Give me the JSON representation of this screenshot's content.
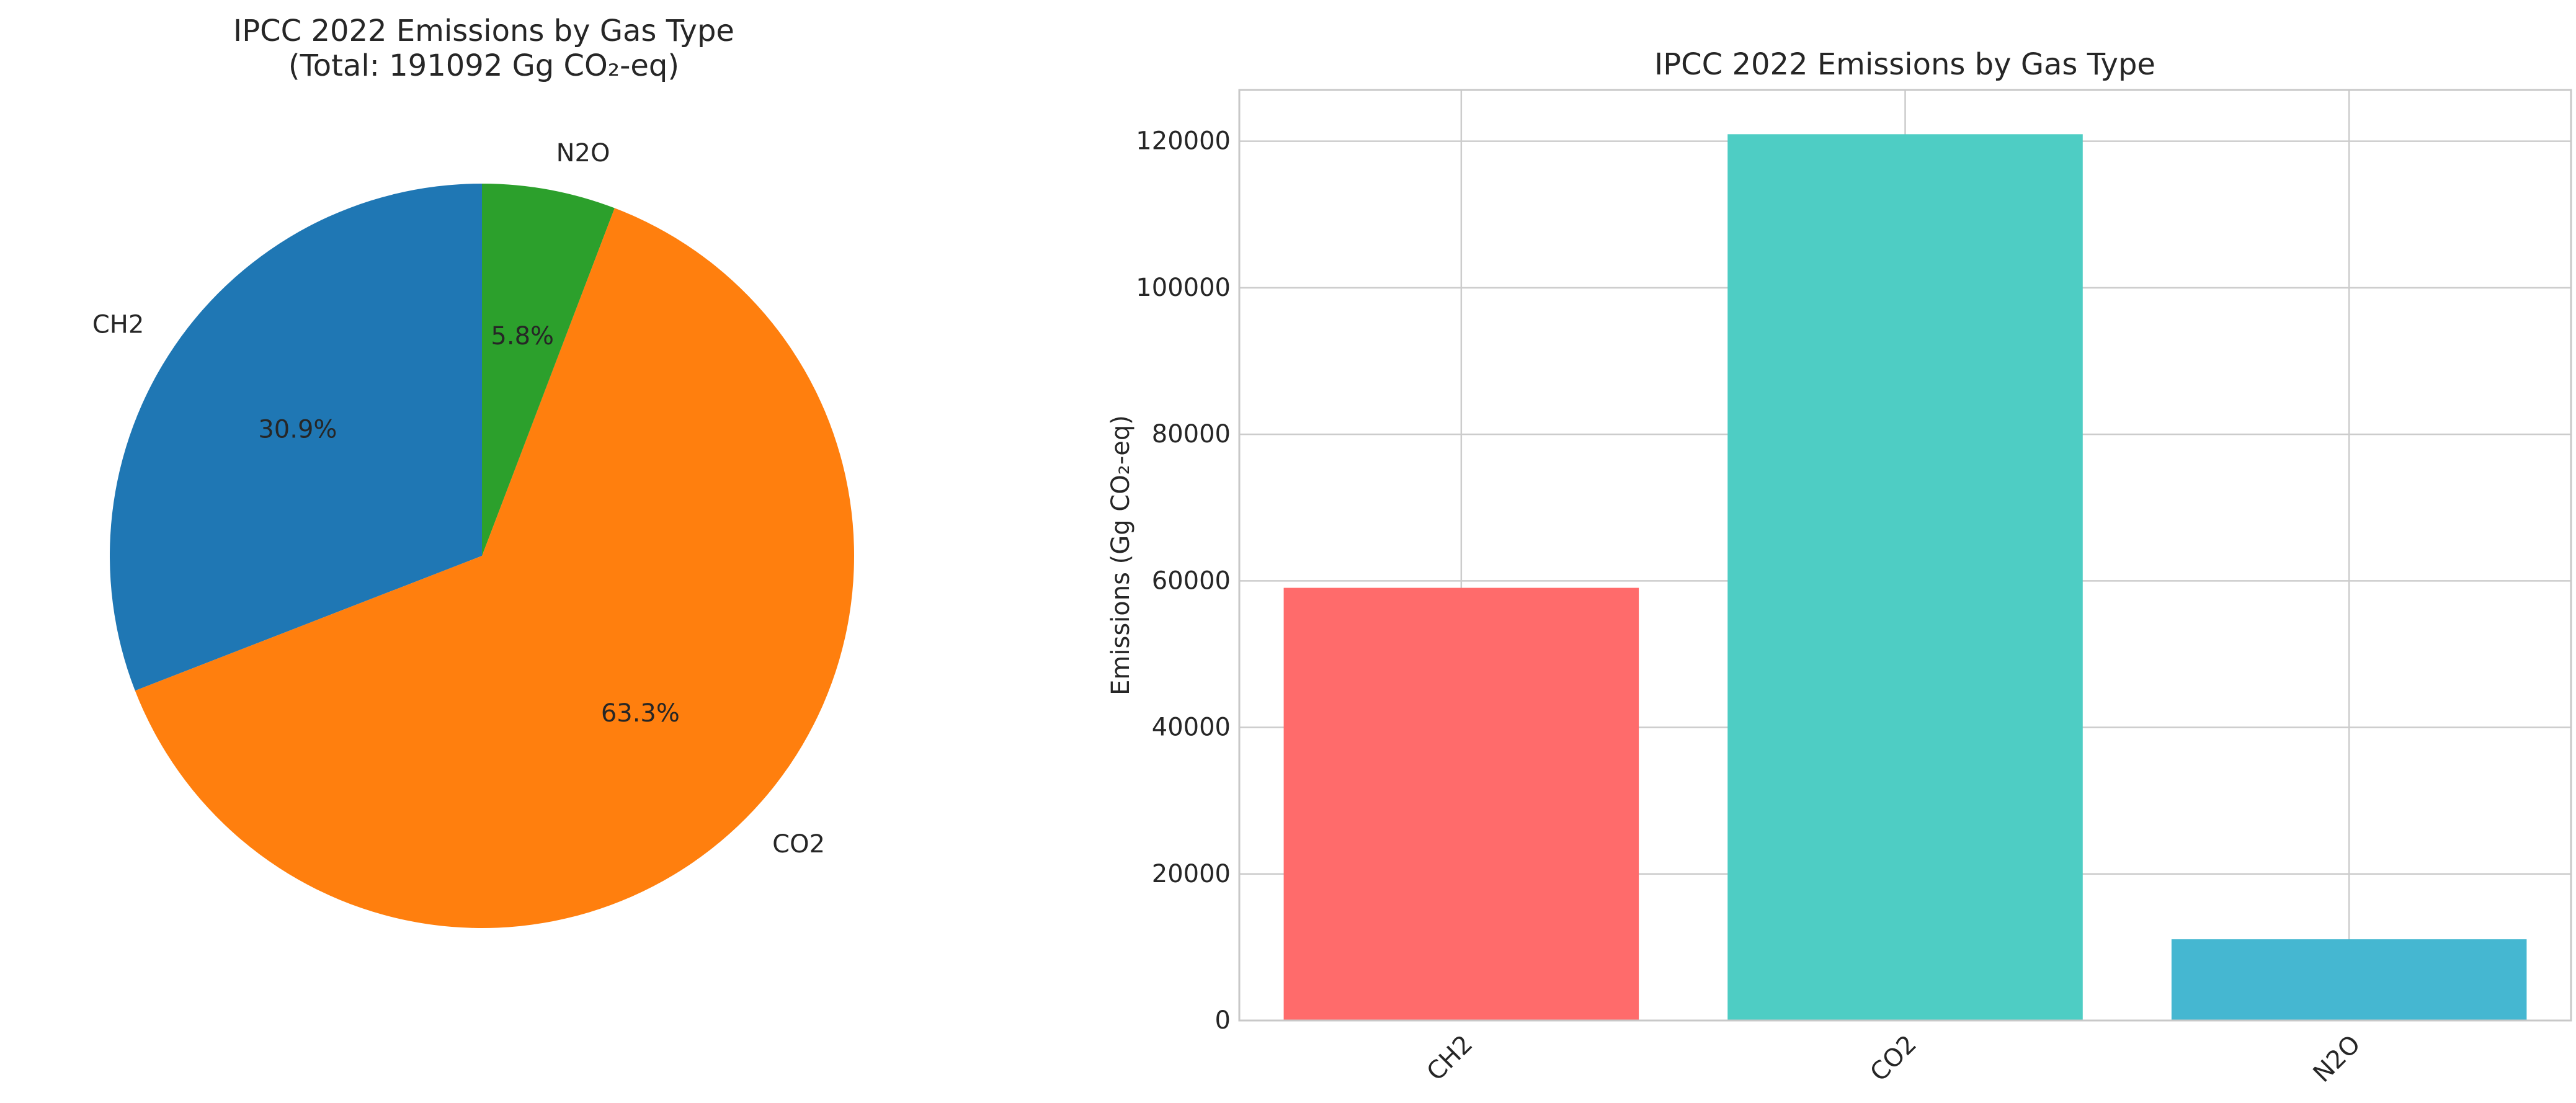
{
  "chart_data": [
    {
      "type": "pie",
      "title": "IPCC 2022 Emissions by Gas Type",
      "subtitle": "(Total: 191092 Gg CO₂-eq)",
      "categories": [
        "CH2",
        "CO2",
        "N2O"
      ],
      "percent_labels": [
        "30.9%",
        "63.3%",
        "5.8%"
      ],
      "values": [
        59048,
        120961,
        11083
      ],
      "colors": [
        "#1f77b4",
        "#ff7f0e",
        "#2ca02c"
      ],
      "start_angle_deg": 90,
      "direction": "counterclockwise"
    },
    {
      "type": "bar",
      "title": "IPCC 2022 Emissions by Gas Type",
      "xlabel": "",
      "ylabel": "Emissions (Gg CO₂-eq)",
      "categories": [
        "CH2",
        "CO2",
        "N2O"
      ],
      "values": [
        59048,
        120961,
        11083
      ],
      "colors": [
        "#ff6b6b",
        "#4ecdc4",
        "#45b7d1"
      ],
      "ylim": [
        0,
        127000
      ],
      "yticks": [
        0,
        20000,
        40000,
        60000,
        80000,
        100000,
        120000
      ],
      "ytick_labels": [
        "0",
        "20000",
        "40000",
        "60000",
        "80000",
        "100000",
        "120000"
      ],
      "grid": true
    }
  ]
}
